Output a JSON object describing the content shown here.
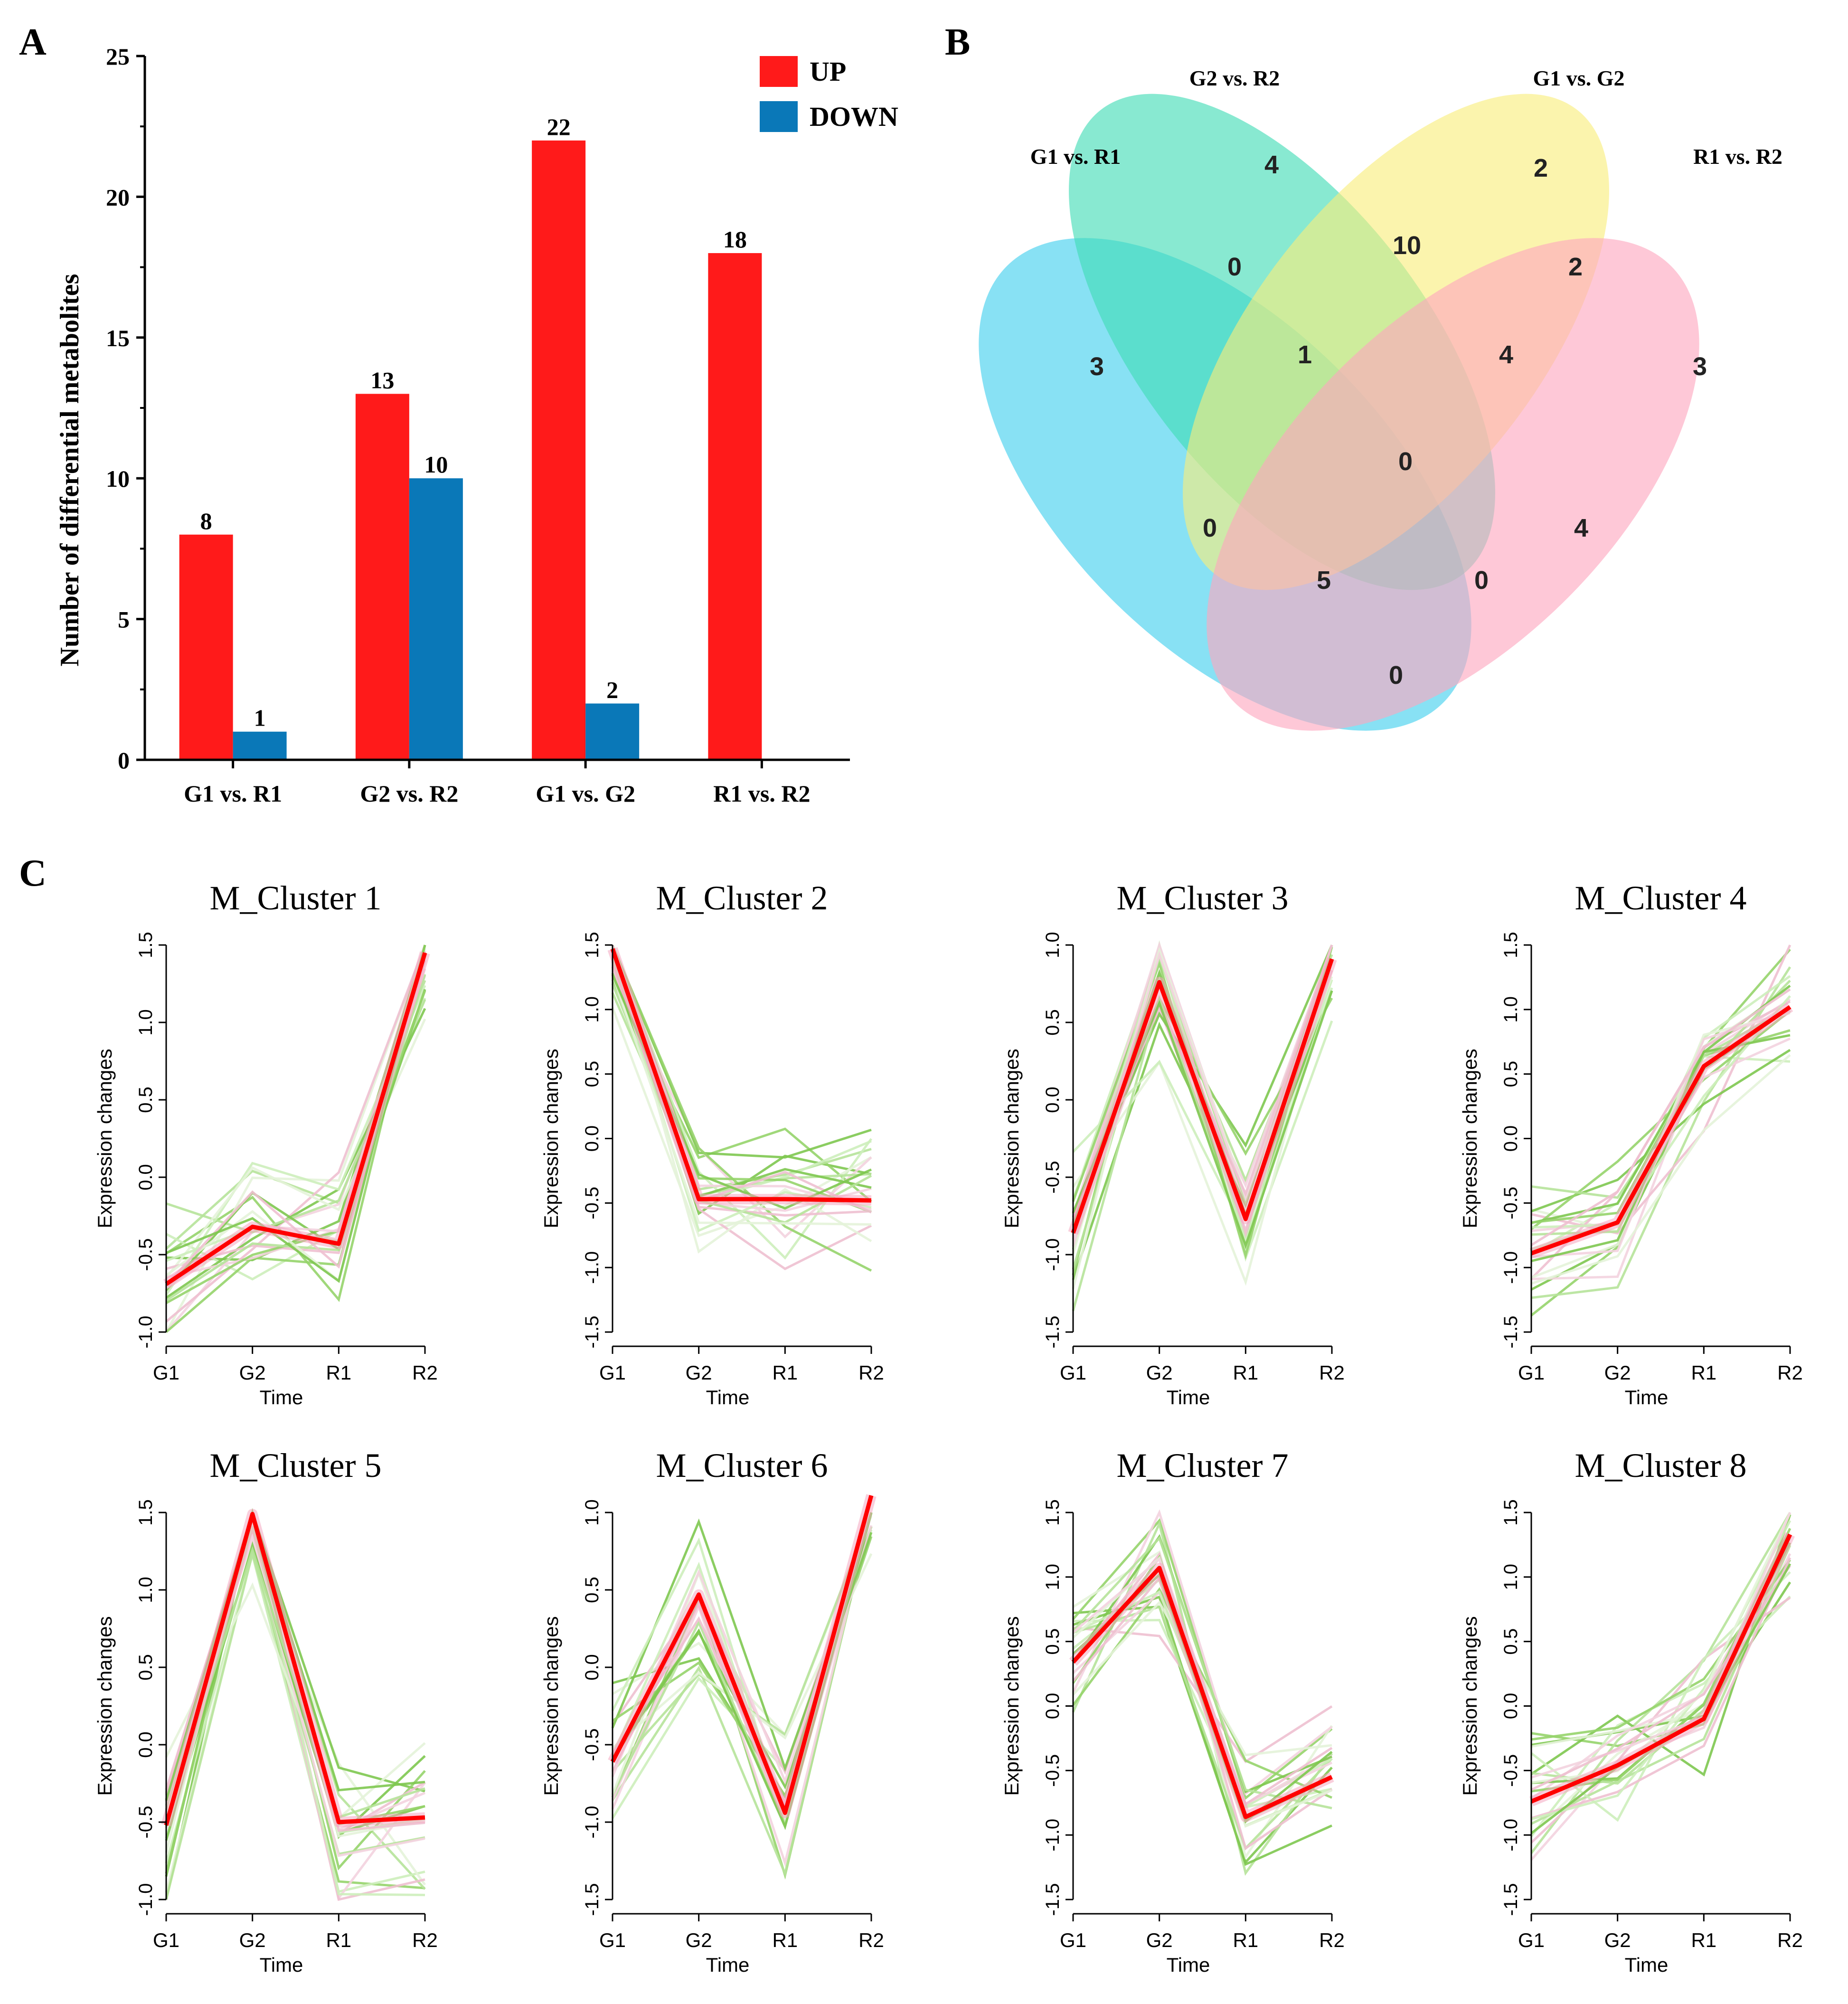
{
  "panel_labels": {
    "a": "A",
    "b": "B",
    "c": "C"
  },
  "colors": {
    "up": "#ff1a1a",
    "down": "#0a78b8",
    "trend": "#ff0000",
    "trend_halo": "#f4a6c0"
  },
  "chart_data": [
    {
      "panel": "A",
      "type": "bar",
      "categories": [
        "G1 vs. R1",
        "G2 vs. R2",
        "G1 vs. G2",
        "R1 vs. R2"
      ],
      "series": [
        {
          "name": "UP",
          "values": [
            8,
            13,
            22,
            18
          ],
          "value_labels": [
            "8",
            "13",
            "22",
            "18"
          ]
        },
        {
          "name": "DOWN",
          "values": [
            1,
            10,
            2,
            0
          ],
          "value_labels": [
            "1",
            "10",
            "2",
            ""
          ]
        }
      ],
      "title": "",
      "xlabel": "",
      "ylabel": "Number of differential metabolites",
      "ylim": [
        0,
        25
      ],
      "yticks": [
        "0",
        "5",
        "10",
        "15",
        "20",
        "25"
      ],
      "legend": "top-right",
      "grid": false
    },
    {
      "panel": "B",
      "type": "venn",
      "sets": [
        {
          "name": "G1 vs. R1",
          "color": "#3fcfee"
        },
        {
          "name": "G2 vs. R2",
          "color": "#3fdcb4"
        },
        {
          "name": "G1 vs. G2",
          "color": "#f8ee7a"
        },
        {
          "name": "R1 vs. R2",
          "color": "#fda7bf"
        }
      ],
      "regions": [
        {
          "sets": [
            "G2 vs. R2"
          ],
          "value": "4"
        },
        {
          "sets": [
            "G1 vs. G2"
          ],
          "value": "2"
        },
        {
          "sets": [
            "G1 vs. R1"
          ],
          "value": "3"
        },
        {
          "sets": [
            "R1 vs. R2"
          ],
          "value": "3"
        },
        {
          "sets": [
            "G1 vs. R1",
            "G2 vs. R2"
          ],
          "value": "0"
        },
        {
          "sets": [
            "G2 vs. R2",
            "G1 vs. G2"
          ],
          "value": "10"
        },
        {
          "sets": [
            "G1 vs. G2",
            "R1 vs. R2"
          ],
          "value": "2"
        },
        {
          "sets": [
            "G1 vs. R1",
            "G2 vs. R2",
            "G1 vs. G2"
          ],
          "value": "1"
        },
        {
          "sets": [
            "G2 vs. R2",
            "G1 vs. G2",
            "R1 vs. R2"
          ],
          "value": "4"
        },
        {
          "sets": [
            "G1 vs. R1",
            "G2 vs. R2",
            "G1 vs. G2",
            "R1 vs. R2"
          ],
          "value": "0"
        },
        {
          "sets": [
            "G1 vs. R1",
            "G1 vs. G2"
          ],
          "value": "0"
        },
        {
          "sets": [
            "G2 vs. R2",
            "R1 vs. R2"
          ],
          "value": "4"
        },
        {
          "sets": [
            "G1 vs. R1",
            "G1 vs. G2",
            "R1 vs. R2"
          ],
          "value": "5"
        },
        {
          "sets": [
            "G1 vs. R1",
            "G2 vs. R2",
            "R1 vs. R2"
          ],
          "value": "0"
        },
        {
          "sets": [
            "G1 vs. R1",
            "R1 vs. R2"
          ],
          "value": "0"
        }
      ]
    },
    {
      "panel": "C",
      "type": "line",
      "xlabel": "Time",
      "ylabel": "Expression changes",
      "categories": [
        "G1",
        "G2",
        "R1",
        "R2"
      ],
      "clusters": [
        {
          "title": "M_Cluster 1",
          "ylim": [
            -1.0,
            1.5
          ],
          "yticks": [
            "-1.0",
            "-0.5",
            "0.0",
            "0.5",
            "1.0",
            "1.5"
          ],
          "centroid": [
            -0.69,
            -0.32,
            -0.43,
            1.45
          ]
        },
        {
          "title": "M_Cluster 2",
          "ylim": [
            -1.5,
            1.5
          ],
          "yticks": [
            "-1.5",
            "-1.0",
            "-0.5",
            "0.0",
            "0.5",
            "1.0",
            "1.5"
          ],
          "centroid": [
            1.47,
            -0.47,
            -0.47,
            -0.48
          ]
        },
        {
          "title": "M_Cluster 3",
          "ylim": [
            -1.5,
            1.0
          ],
          "yticks": [
            "-1.5",
            "-1.0",
            "-0.5",
            "0.0",
            "0.5",
            "1.0"
          ],
          "centroid": [
            -0.86,
            0.76,
            -0.77,
            0.91
          ]
        },
        {
          "title": "M_Cluster 4",
          "ylim": [
            -1.5,
            1.5
          ],
          "yticks": [
            "-1.5",
            "-1.0",
            "-0.5",
            "0.0",
            "0.5",
            "1.0",
            "1.5"
          ],
          "centroid": [
            -0.89,
            -0.65,
            0.56,
            1.02
          ]
        },
        {
          "title": "M_Cluster 5",
          "ylim": [
            -1.0,
            1.5
          ],
          "yticks": [
            "-1.0",
            "-0.5",
            "0.0",
            "0.5",
            "1.0",
            "1.5"
          ],
          "centroid": [
            -0.52,
            1.49,
            -0.5,
            -0.47
          ]
        },
        {
          "title": "M_Cluster 6",
          "ylim": [
            -1.5,
            1.0
          ],
          "yticks": [
            "-1.5",
            "-1.0",
            "-0.5",
            "0.0",
            "0.5",
            "1.0"
          ],
          "centroid": [
            -0.61,
            0.47,
            -0.94,
            1.11
          ]
        },
        {
          "title": "M_Cluster 7",
          "ylim": [
            -1.5,
            1.5
          ],
          "yticks": [
            "-1.5",
            "-1.0",
            "-0.5",
            "0.0",
            "0.5",
            "1.0",
            "1.5"
          ],
          "centroid": [
            0.34,
            1.07,
            -0.86,
            -0.55
          ]
        },
        {
          "title": "M_Cluster 8",
          "ylim": [
            -1.5,
            1.5
          ],
          "yticks": [
            "-1.5",
            "-1.0",
            "-0.5",
            "0.0",
            "0.5",
            "1.0",
            "1.5"
          ],
          "centroid": [
            -0.74,
            -0.46,
            -0.1,
            1.33
          ]
        }
      ]
    }
  ]
}
